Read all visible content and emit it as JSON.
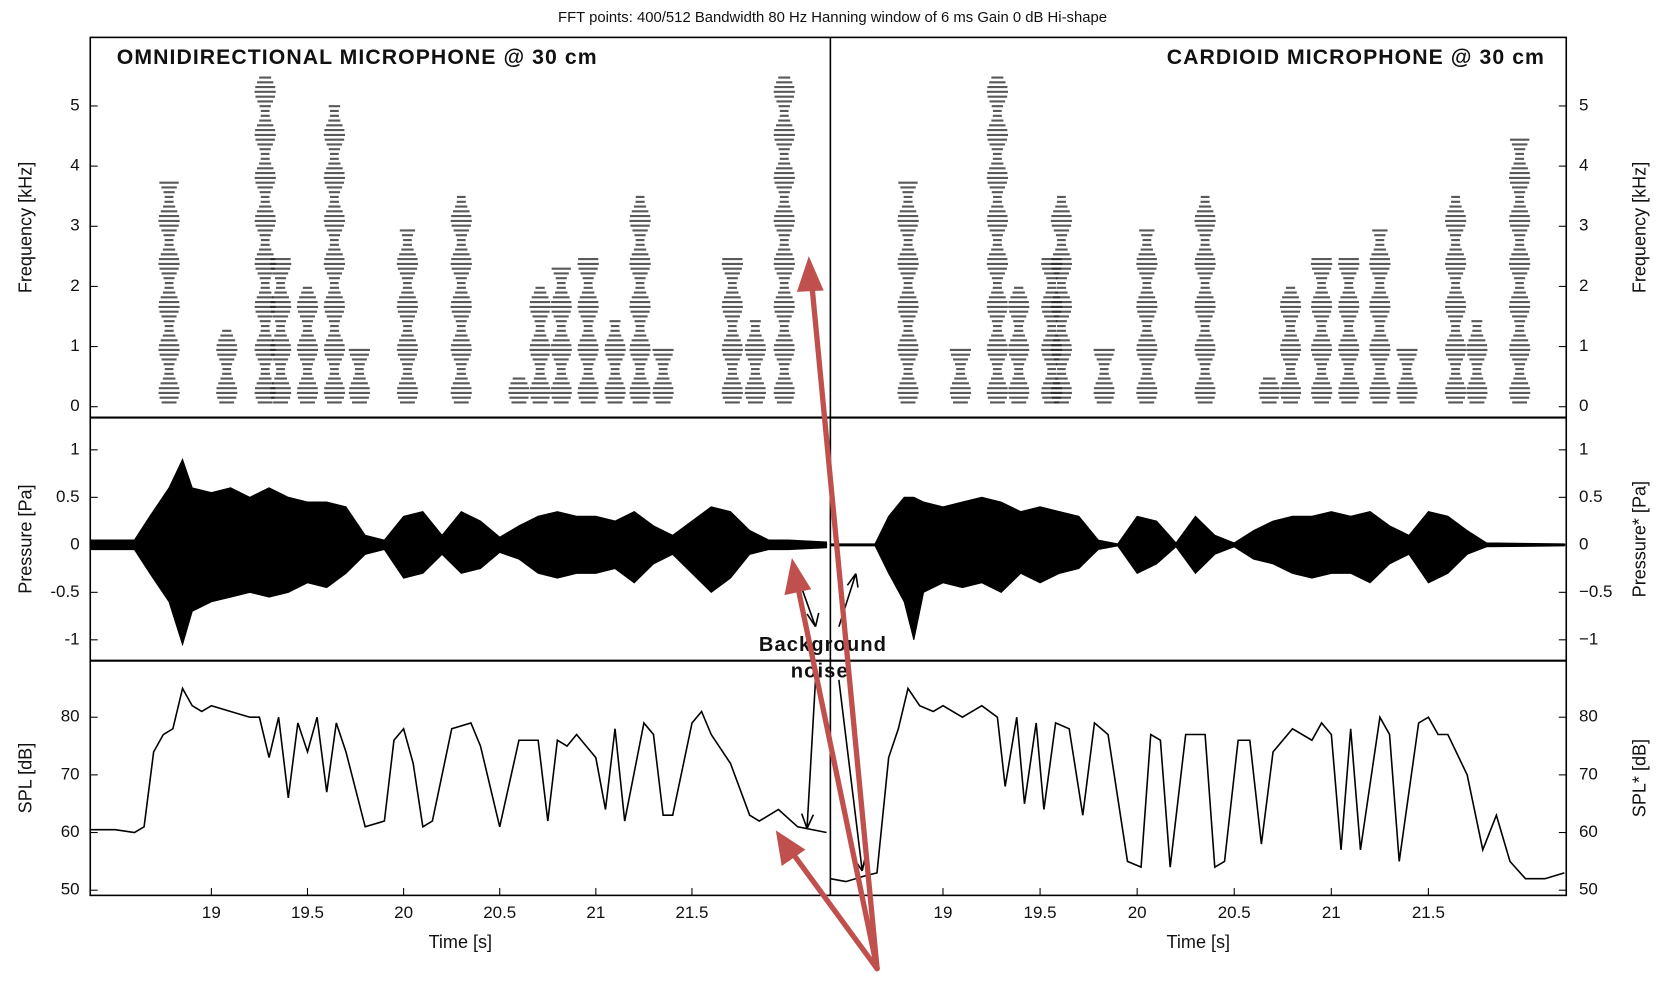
{
  "title": "FFT points: 400/512  Bandwidth 80 Hz  Hanning window of 6 ms  Gain 0 dB  Hi-shape",
  "annotation": [
    "Background",
    "noise"
  ],
  "chart_data": [
    {
      "type": "spectrogram",
      "title": "OMNIDIRECTIONAL MICROPHONE @ 30 cm",
      "ylabel": "Frequency [kHz]",
      "xlim": [
        18.37,
        22.22
      ],
      "ylim": [
        -0.18,
        6.14
      ],
      "yticks": [
        0,
        1,
        2,
        3,
        4,
        5
      ],
      "color": "#222222",
      "x": [
        18.78,
        19.08,
        19.28,
        19.36,
        19.5,
        19.64,
        19.77,
        20.02,
        20.3,
        20.6,
        20.71,
        20.82,
        20.96,
        21.1,
        21.23,
        21.35,
        21.71,
        21.83,
        21.98
      ],
      "values": [
        3.8,
        1.3,
        5.5,
        2.5,
        2,
        5,
        1,
        3,
        3.5,
        0.5,
        2,
        2.3,
        2.5,
        1.5,
        3.5,
        1,
        2.5,
        1.5,
        5.5
      ]
    },
    {
      "type": "spectrogram",
      "title": "CARDIOID MICROPHONE @ 30 cm",
      "ylabel": "Frequency [kHz]",
      "xlim": [
        18.42,
        22.21
      ],
      "ylim": [
        -0.18,
        6.14
      ],
      "yticks": [
        0,
        1,
        2,
        3,
        4,
        5
      ],
      "color": "#222222",
      "x": [
        18.82,
        19.09,
        19.28,
        19.39,
        19.56,
        19.61,
        19.83,
        20.05,
        20.35,
        20.68,
        20.79,
        20.95,
        21.09,
        21.25,
        21.39,
        21.64,
        21.75,
        21.97
      ],
      "values": [
        3.8,
        1,
        5.5,
        2,
        2.5,
        3.5,
        1,
        3,
        3.5,
        0.5,
        2,
        2.5,
        2.5,
        3,
        1,
        3.5,
        1.5,
        4.5
      ]
    },
    {
      "type": "envelope",
      "ylabel": "Pressure [Pa]",
      "xlim": [
        18.37,
        22.22
      ],
      "ylim": [
        -1.22,
        1.34
      ],
      "yticks": [
        -1,
        -0.5,
        0,
        0.5,
        1
      ],
      "color": "#000000",
      "x": [
        18.37,
        18.6,
        18.68,
        18.78,
        18.85,
        18.9,
        19.0,
        19.1,
        19.2,
        19.3,
        19.4,
        19.5,
        19.6,
        19.7,
        19.8,
        19.9,
        20.0,
        20.1,
        20.2,
        20.3,
        20.4,
        20.5,
        20.6,
        20.7,
        20.8,
        20.9,
        21.0,
        21.1,
        21.2,
        21.3,
        21.4,
        21.5,
        21.6,
        21.7,
        21.8,
        21.9,
        22.0,
        22.2
      ],
      "upper": [
        0.05,
        0.05,
        0.3,
        0.6,
        0.9,
        0.6,
        0.55,
        0.6,
        0.5,
        0.6,
        0.5,
        0.45,
        0.45,
        0.4,
        0.1,
        0.05,
        0.3,
        0.35,
        0.1,
        0.35,
        0.25,
        0.08,
        0.2,
        0.3,
        0.35,
        0.3,
        0.3,
        0.25,
        0.35,
        0.2,
        0.1,
        0.25,
        0.4,
        0.35,
        0.15,
        0.05,
        0.05,
        0.03
      ],
      "lower": [
        -0.05,
        -0.05,
        -0.3,
        -0.6,
        -1.05,
        -0.7,
        -0.6,
        -0.55,
        -0.5,
        -0.55,
        -0.5,
        -0.4,
        -0.45,
        -0.3,
        -0.1,
        -0.05,
        -0.35,
        -0.3,
        -0.1,
        -0.3,
        -0.25,
        -0.08,
        -0.15,
        -0.3,
        -0.35,
        -0.3,
        -0.3,
        -0.25,
        -0.4,
        -0.2,
        -0.1,
        -0.3,
        -0.5,
        -0.35,
        -0.1,
        -0.05,
        -0.05,
        -0.03
      ]
    },
    {
      "type": "envelope",
      "ylabel": "Pressure* [Pa]",
      "xlim": [
        18.42,
        22.21
      ],
      "ylim": [
        -1.22,
        1.34
      ],
      "yticks": [
        {
          "value": -1,
          "label": "−1"
        },
        {
          "value": -0.5,
          "label": "−0.5"
        },
        0,
        0.5,
        1
      ],
      "color": "#000000",
      "x": [
        18.42,
        18.65,
        18.72,
        18.8,
        18.85,
        18.9,
        19.0,
        19.1,
        19.2,
        19.3,
        19.4,
        19.5,
        19.6,
        19.7,
        19.8,
        19.9,
        20.0,
        20.1,
        20.2,
        20.3,
        20.4,
        20.5,
        20.6,
        20.7,
        20.8,
        20.9,
        21.0,
        21.1,
        21.2,
        21.3,
        21.4,
        21.5,
        21.6,
        21.7,
        21.8,
        22.2
      ],
      "upper": [
        0.01,
        0.01,
        0.3,
        0.5,
        0.5,
        0.45,
        0.4,
        0.45,
        0.5,
        0.45,
        0.35,
        0.4,
        0.35,
        0.3,
        0.05,
        0.01,
        0.3,
        0.25,
        0.02,
        0.3,
        0.1,
        0.02,
        0.15,
        0.25,
        0.3,
        0.3,
        0.35,
        0.3,
        0.35,
        0.2,
        0.1,
        0.35,
        0.3,
        0.15,
        0.02,
        0.01
      ],
      "lower": [
        -0.01,
        -0.01,
        -0.3,
        -0.6,
        -1.0,
        -0.5,
        -0.4,
        -0.45,
        -0.4,
        -0.5,
        -0.3,
        -0.4,
        -0.3,
        -0.25,
        -0.05,
        -0.01,
        -0.3,
        -0.2,
        -0.02,
        -0.3,
        -0.1,
        -0.02,
        -0.15,
        -0.2,
        -0.3,
        -0.35,
        -0.3,
        -0.3,
        -0.4,
        -0.2,
        -0.1,
        -0.4,
        -0.3,
        -0.1,
        -0.02,
        -0.01
      ]
    },
    {
      "type": "line",
      "ylabel": "SPL [dB]",
      "xlabel": "Time [s]",
      "xlim": [
        18.37,
        22.22
      ],
      "ylim": [
        49.1,
        89.8
      ],
      "xticks": [
        19,
        19.5,
        20,
        20.5,
        21,
        21.5
      ],
      "yticks": [
        50,
        60,
        70,
        80
      ],
      "color": "#000000",
      "x": [
        18.37,
        18.5,
        18.6,
        18.65,
        18.7,
        18.75,
        18.8,
        18.85,
        18.9,
        18.95,
        19.0,
        19.1,
        19.2,
        19.25,
        19.3,
        19.35,
        19.4,
        19.45,
        19.5,
        19.55,
        19.6,
        19.65,
        19.7,
        19.8,
        19.9,
        19.95,
        20.0,
        20.05,
        20.1,
        20.15,
        20.25,
        20.35,
        20.4,
        20.5,
        20.6,
        20.7,
        20.75,
        20.8,
        20.85,
        20.9,
        20.95,
        21.0,
        21.05,
        21.1,
        21.15,
        21.25,
        21.3,
        21.35,
        21.4,
        21.5,
        21.55,
        21.6,
        21.7,
        21.8,
        21.85,
        21.95,
        22.05,
        22.2
      ],
      "values": [
        60.5,
        60.5,
        60,
        61,
        74,
        77,
        78,
        85,
        82,
        81,
        82,
        81,
        80,
        80,
        73,
        80,
        66,
        79,
        74,
        80,
        67,
        79,
        74,
        61,
        62,
        76,
        78,
        72,
        61,
        62,
        78,
        79,
        75,
        61,
        76,
        76,
        62,
        76,
        75,
        77,
        75,
        73,
        64,
        78,
        62,
        79,
        77,
        63,
        63,
        79,
        81,
        77,
        72,
        63,
        62,
        64,
        61,
        60
      ]
    },
    {
      "type": "line",
      "ylabel": "SPL* [dB]",
      "xlabel": "Time [s]",
      "xlim": [
        18.42,
        22.21
      ],
      "ylim": [
        49.1,
        89.8
      ],
      "xticks": [
        19,
        19.5,
        20,
        20.5,
        21,
        21.5
      ],
      "yticks": [
        50,
        60,
        70,
        80
      ],
      "color": "#000000",
      "x": [
        18.42,
        18.5,
        18.6,
        18.66,
        18.72,
        18.77,
        18.82,
        18.88,
        18.95,
        19.0,
        19.1,
        19.2,
        19.28,
        19.32,
        19.38,
        19.42,
        19.48,
        19.52,
        19.58,
        19.65,
        19.72,
        19.78,
        19.85,
        19.95,
        20.02,
        20.07,
        20.12,
        20.17,
        20.25,
        20.35,
        20.4,
        20.45,
        20.52,
        20.58,
        20.64,
        20.7,
        20.8,
        20.9,
        20.95,
        21.0,
        21.05,
        21.1,
        21.15,
        21.25,
        21.3,
        21.35,
        21.45,
        21.5,
        21.55,
        21.6,
        21.7,
        21.78,
        21.85,
        21.92,
        22.0,
        22.1,
        22.2
      ],
      "values": [
        52,
        51.5,
        52.5,
        53,
        73,
        78,
        85,
        82,
        81,
        82,
        80,
        82,
        80,
        68,
        80,
        65,
        79,
        64,
        79,
        78,
        63,
        79,
        77,
        55,
        54,
        77,
        76,
        54,
        77,
        77,
        54,
        55,
        76,
        76,
        58,
        74,
        78,
        76,
        79,
        77,
        57,
        78,
        57,
        80,
        77,
        55,
        79,
        80,
        77,
        77,
        70,
        57,
        63,
        55,
        52,
        52,
        53
      ]
    }
  ]
}
